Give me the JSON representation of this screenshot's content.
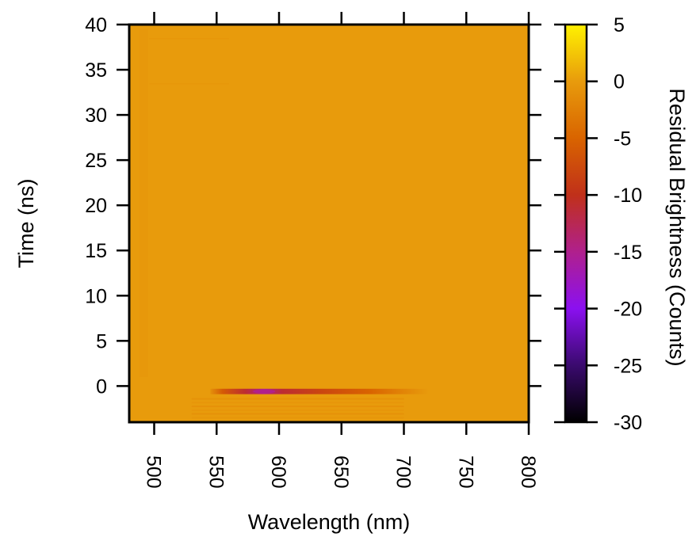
{
  "chart_data": {
    "type": "heatmap",
    "xlabel": "Wavelength (nm)",
    "ylabel": "Time (ns)",
    "colorbar_label": "Residual Brightness (Counts)",
    "xlim": [
      480,
      800
    ],
    "ylim": [
      -4,
      40
    ],
    "x_ticks": [
      500,
      550,
      600,
      650,
      700,
      750,
      800
    ],
    "y_ticks": [
      0,
      5,
      10,
      15,
      20,
      25,
      30,
      35,
      40
    ],
    "colorbar_range": [
      -30,
      5
    ],
    "colorbar_ticks": [
      5,
      0,
      -5,
      -10,
      -15,
      -20,
      -25,
      -30
    ],
    "colormap": [
      {
        "value": -30,
        "color": "#000000"
      },
      {
        "value": -25,
        "color": "#3a0a6e"
      },
      {
        "value": -20,
        "color": "#8b10f0"
      },
      {
        "value": -15,
        "color": "#b0208c"
      },
      {
        "value": -10,
        "color": "#c0301a"
      },
      {
        "value": -5,
        "color": "#d96400"
      },
      {
        "value": 0,
        "color": "#e89b0c"
      },
      {
        "value": 5,
        "color": "#fff200"
      }
    ],
    "background_value": 0,
    "features": [
      {
        "x_range": [
          545,
          720
        ],
        "y_range": [
          -0.9,
          -0.3
        ],
        "min_value": -15,
        "center_x": 588,
        "description_value": "negative residual band"
      },
      {
        "x_range": [
          530,
          700
        ],
        "y_range": [
          -3.5,
          -1.0
        ],
        "min_value": -2,
        "center_x": 590,
        "description_value": "weak ripples"
      }
    ],
    "grid": false
  }
}
